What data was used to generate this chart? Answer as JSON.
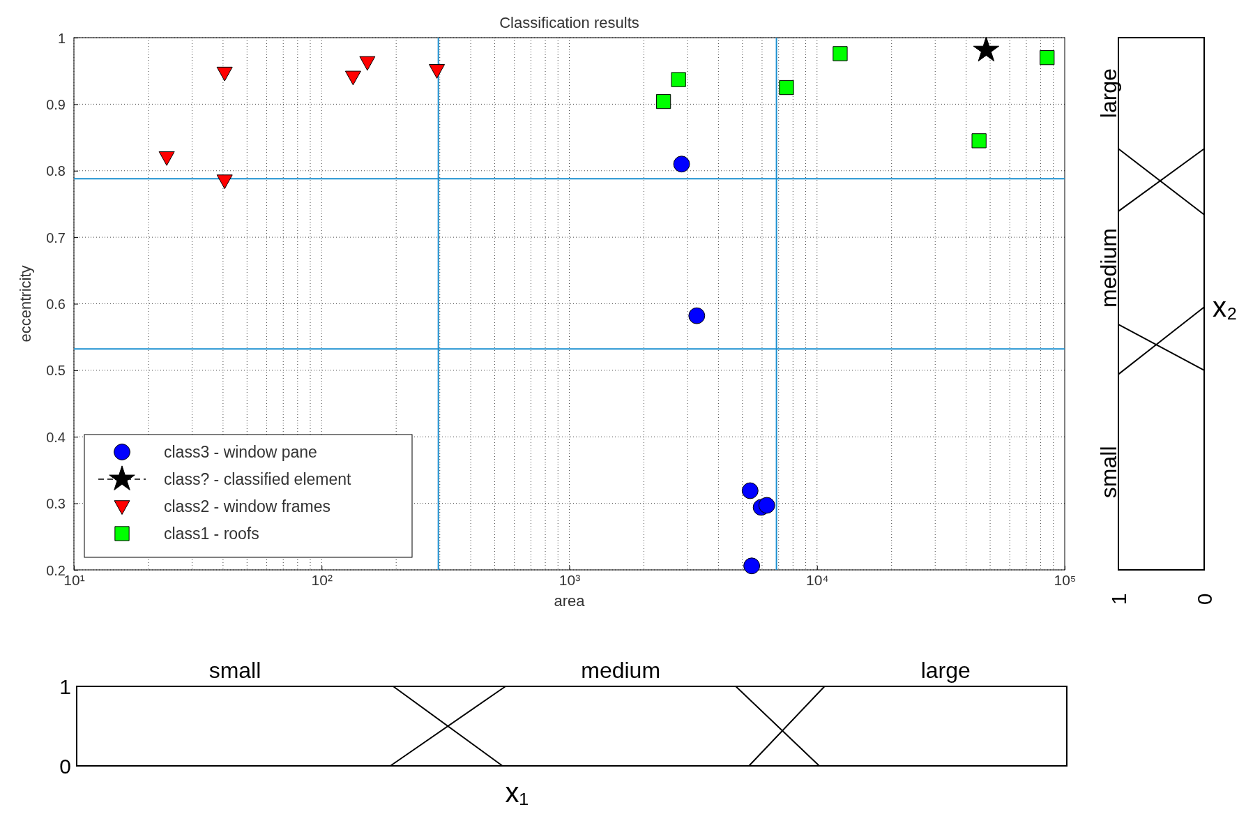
{
  "chart_data": [
    {
      "type": "scatter",
      "title": "Classification results",
      "xlabel": "area",
      "ylabel": "eccentricity",
      "log": "x",
      "xlim": [
        10,
        100000
      ],
      "xticks": [
        {
          "value": 10,
          "label": "10¹"
        },
        {
          "value": 100,
          "label": "10²"
        },
        {
          "value": 1000,
          "label": "10³"
        },
        {
          "value": 10000,
          "label": "10⁴"
        },
        {
          "value": 100000,
          "label": "10⁵"
        }
      ],
      "ylim": [
        0.2,
        1
      ],
      "yticks": [
        0.2,
        0.3,
        0.4,
        0.5,
        0.6,
        0.7,
        0.8,
        0.9,
        1
      ],
      "grid": true,
      "legend": "bottom left",
      "series": [
        {
          "name": "class3 - window pane",
          "color": "#0000ff",
          "marker": "circle",
          "x": [
            2840,
            3270,
            5370,
            5950,
            6270,
            5450
          ],
          "values": [
            0.81,
            0.582,
            0.319,
            0.294,
            0.297,
            0.206
          ]
        },
        {
          "name": "class? - classified element",
          "color": "#000000",
          "marker": "star",
          "line_style": "dashed",
          "x": [
            48200
          ],
          "values": [
            0.981
          ]
        },
        {
          "name": "class2 - window frames",
          "color": "#ff0000",
          "marker": "triangle",
          "x": [
            23.7,
            40.6,
            40.6,
            134,
            153,
            292
          ],
          "values": [
            0.82,
            0.785,
            0.947,
            0.941,
            0.963,
            0.951
          ]
        },
        {
          "name": "class1 - roofs",
          "color": "#00ff00",
          "marker": "square",
          "x": [
            2400,
            2760,
            7530,
            12400,
            45100,
            84900
          ],
          "values": [
            0.904,
            0.937,
            0.925,
            0.976,
            0.845,
            0.97
          ]
        }
      ],
      "ref_lines": [
        {
          "axis": "x",
          "value": 296,
          "color": "#1a8fd0"
        },
        {
          "axis": "x",
          "value": 6860,
          "color": "#1a8fd0"
        },
        {
          "axis": "y",
          "value": 0.788,
          "color": "#1a8fd0"
        },
        {
          "axis": "y",
          "value": 0.532,
          "color": "#1a8fd0"
        }
      ]
    },
    {
      "type": "line",
      "xlabel": "x₁",
      "log": "x",
      "xlim": [
        10,
        100000
      ],
      "ylim": [
        0,
        1
      ],
      "yticks": [
        0,
        1
      ],
      "tick_labels": "y",
      "series": [
        {
          "name": "small",
          "color": "#000000",
          "x": [
            10,
            190,
            525
          ],
          "values": [
            1,
            1,
            0
          ]
        },
        {
          "name": "medium",
          "color": "#000000",
          "x": [
            185,
            540,
            4600,
            10000
          ],
          "values": [
            0,
            1,
            1,
            0
          ]
        },
        {
          "name": "large",
          "color": "#000000",
          "x": [
            5200,
            10500,
            100000
          ],
          "values": [
            0,
            1,
            1
          ]
        }
      ]
    },
    {
      "type": "line",
      "orientation": "horizontal",
      "ylabel": "x₂",
      "xlim": [
        1,
        0
      ],
      "xticks": [
        1,
        0
      ],
      "ylim": [
        0.2,
        1
      ],
      "tick_labels": "x",
      "series": [
        {
          "name": "small",
          "color": "#000000",
          "x": [
            0.2,
            0.494,
            0.595
          ],
          "values": [
            1,
            1,
            0
          ]
        },
        {
          "name": "medium",
          "color": "#000000",
          "x": [
            0.5,
            0.569,
            0.739,
            0.833
          ],
          "values": [
            0,
            1,
            1,
            0
          ]
        },
        {
          "name": "large",
          "color": "#000000",
          "x": [
            0.734,
            0.833,
            1
          ],
          "values": [
            0,
            1,
            1
          ]
        }
      ]
    }
  ]
}
